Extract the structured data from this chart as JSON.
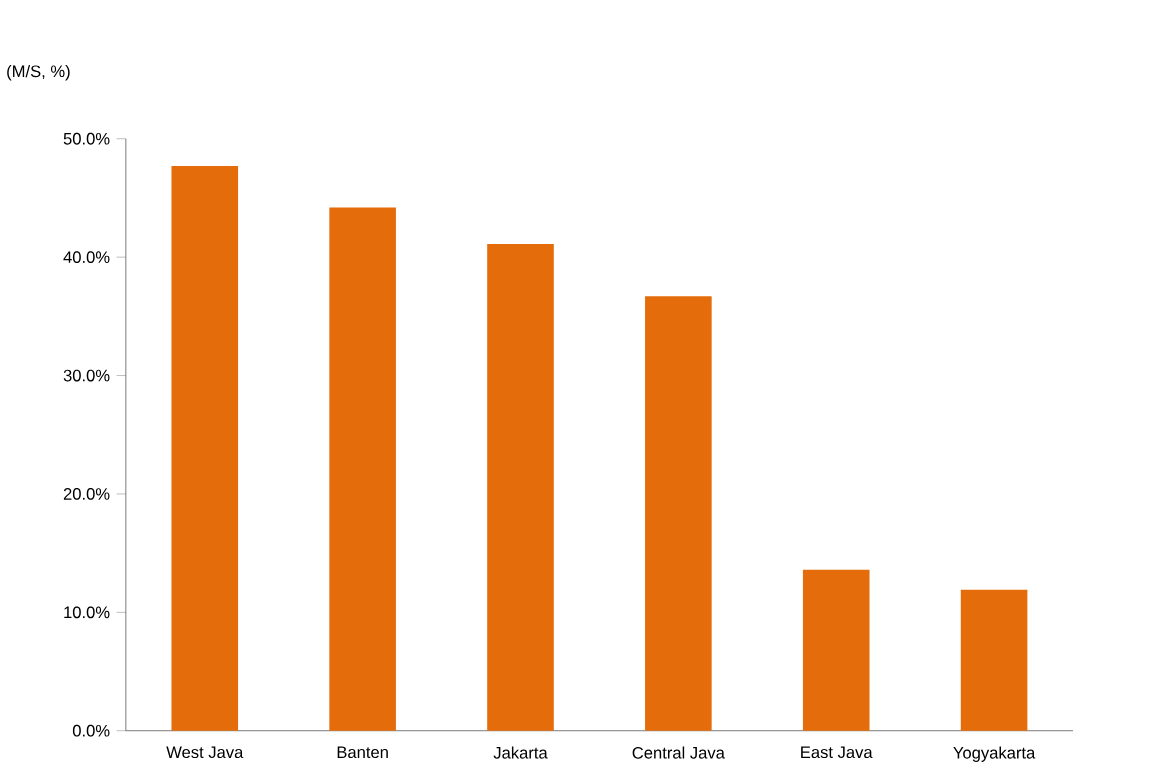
{
  "chart_data": {
    "type": "bar",
    "ylabel": "(M/S, %)",
    "categories": [
      "West Java",
      "Banten",
      "Jakarta",
      "Central Java",
      "East Java",
      "Yogyakarta"
    ],
    "values": [
      47.7,
      44.2,
      41.1,
      36.7,
      13.6,
      11.9
    ],
    "color": "#e46c0a",
    "ylim": [
      0,
      50
    ],
    "yticks": [
      {
        "value": 0,
        "label": "0.0%"
      },
      {
        "value": 10,
        "label": "10.0%"
      },
      {
        "value": 20,
        "label": "20.0%"
      },
      {
        "value": 30,
        "label": "30.0%"
      },
      {
        "value": 40,
        "label": "40.0%"
      },
      {
        "value": 50,
        "label": "50.0%"
      }
    ]
  }
}
